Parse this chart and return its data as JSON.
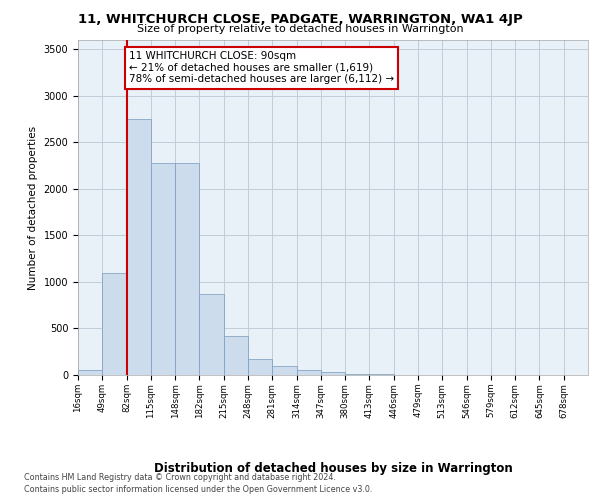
{
  "title": "11, WHITCHURCH CLOSE, PADGATE, WARRINGTON, WA1 4JP",
  "subtitle": "Size of property relative to detached houses in Warrington",
  "xlabel": "Distribution of detached houses by size in Warrington",
  "ylabel": "Number of detached properties",
  "bar_color": "#ccdcec",
  "bar_edge_color": "#7799bb",
  "bar_values": [
    50,
    1100,
    2750,
    2280,
    2280,
    875,
    420,
    175,
    100,
    50,
    30,
    15,
    10,
    5,
    5,
    3,
    2,
    1,
    1,
    1
  ],
  "bar_labels": [
    "16sqm",
    "49sqm",
    "82sqm",
    "115sqm",
    "148sqm",
    "182sqm",
    "215sqm",
    "248sqm",
    "281sqm",
    "314sqm",
    "347sqm",
    "380sqm",
    "413sqm",
    "446sqm",
    "479sqm",
    "513sqm",
    "546sqm",
    "579sqm",
    "612sqm",
    "645sqm",
    "678sqm"
  ],
  "ylim": [
    0,
    3600
  ],
  "yticks": [
    0,
    500,
    1000,
    1500,
    2000,
    2500,
    3000,
    3500
  ],
  "red_line_bin_index": 2,
  "annotation_text": "11 WHITCHURCH CLOSE: 90sqm\n← 21% of detached houses are smaller (1,619)\n78% of semi-detached houses are larger (6,112) →",
  "annotation_box_color": "#ffffff",
  "annotation_box_edge_color": "#cc0000",
  "vline_color": "#cc0000",
  "grid_color": "#c0ccd8",
  "background_color": "#e8f0f8",
  "footer_line1": "Contains HM Land Registry data © Crown copyright and database right 2024.",
  "footer_line2": "Contains public sector information licensed under the Open Government Licence v3.0."
}
